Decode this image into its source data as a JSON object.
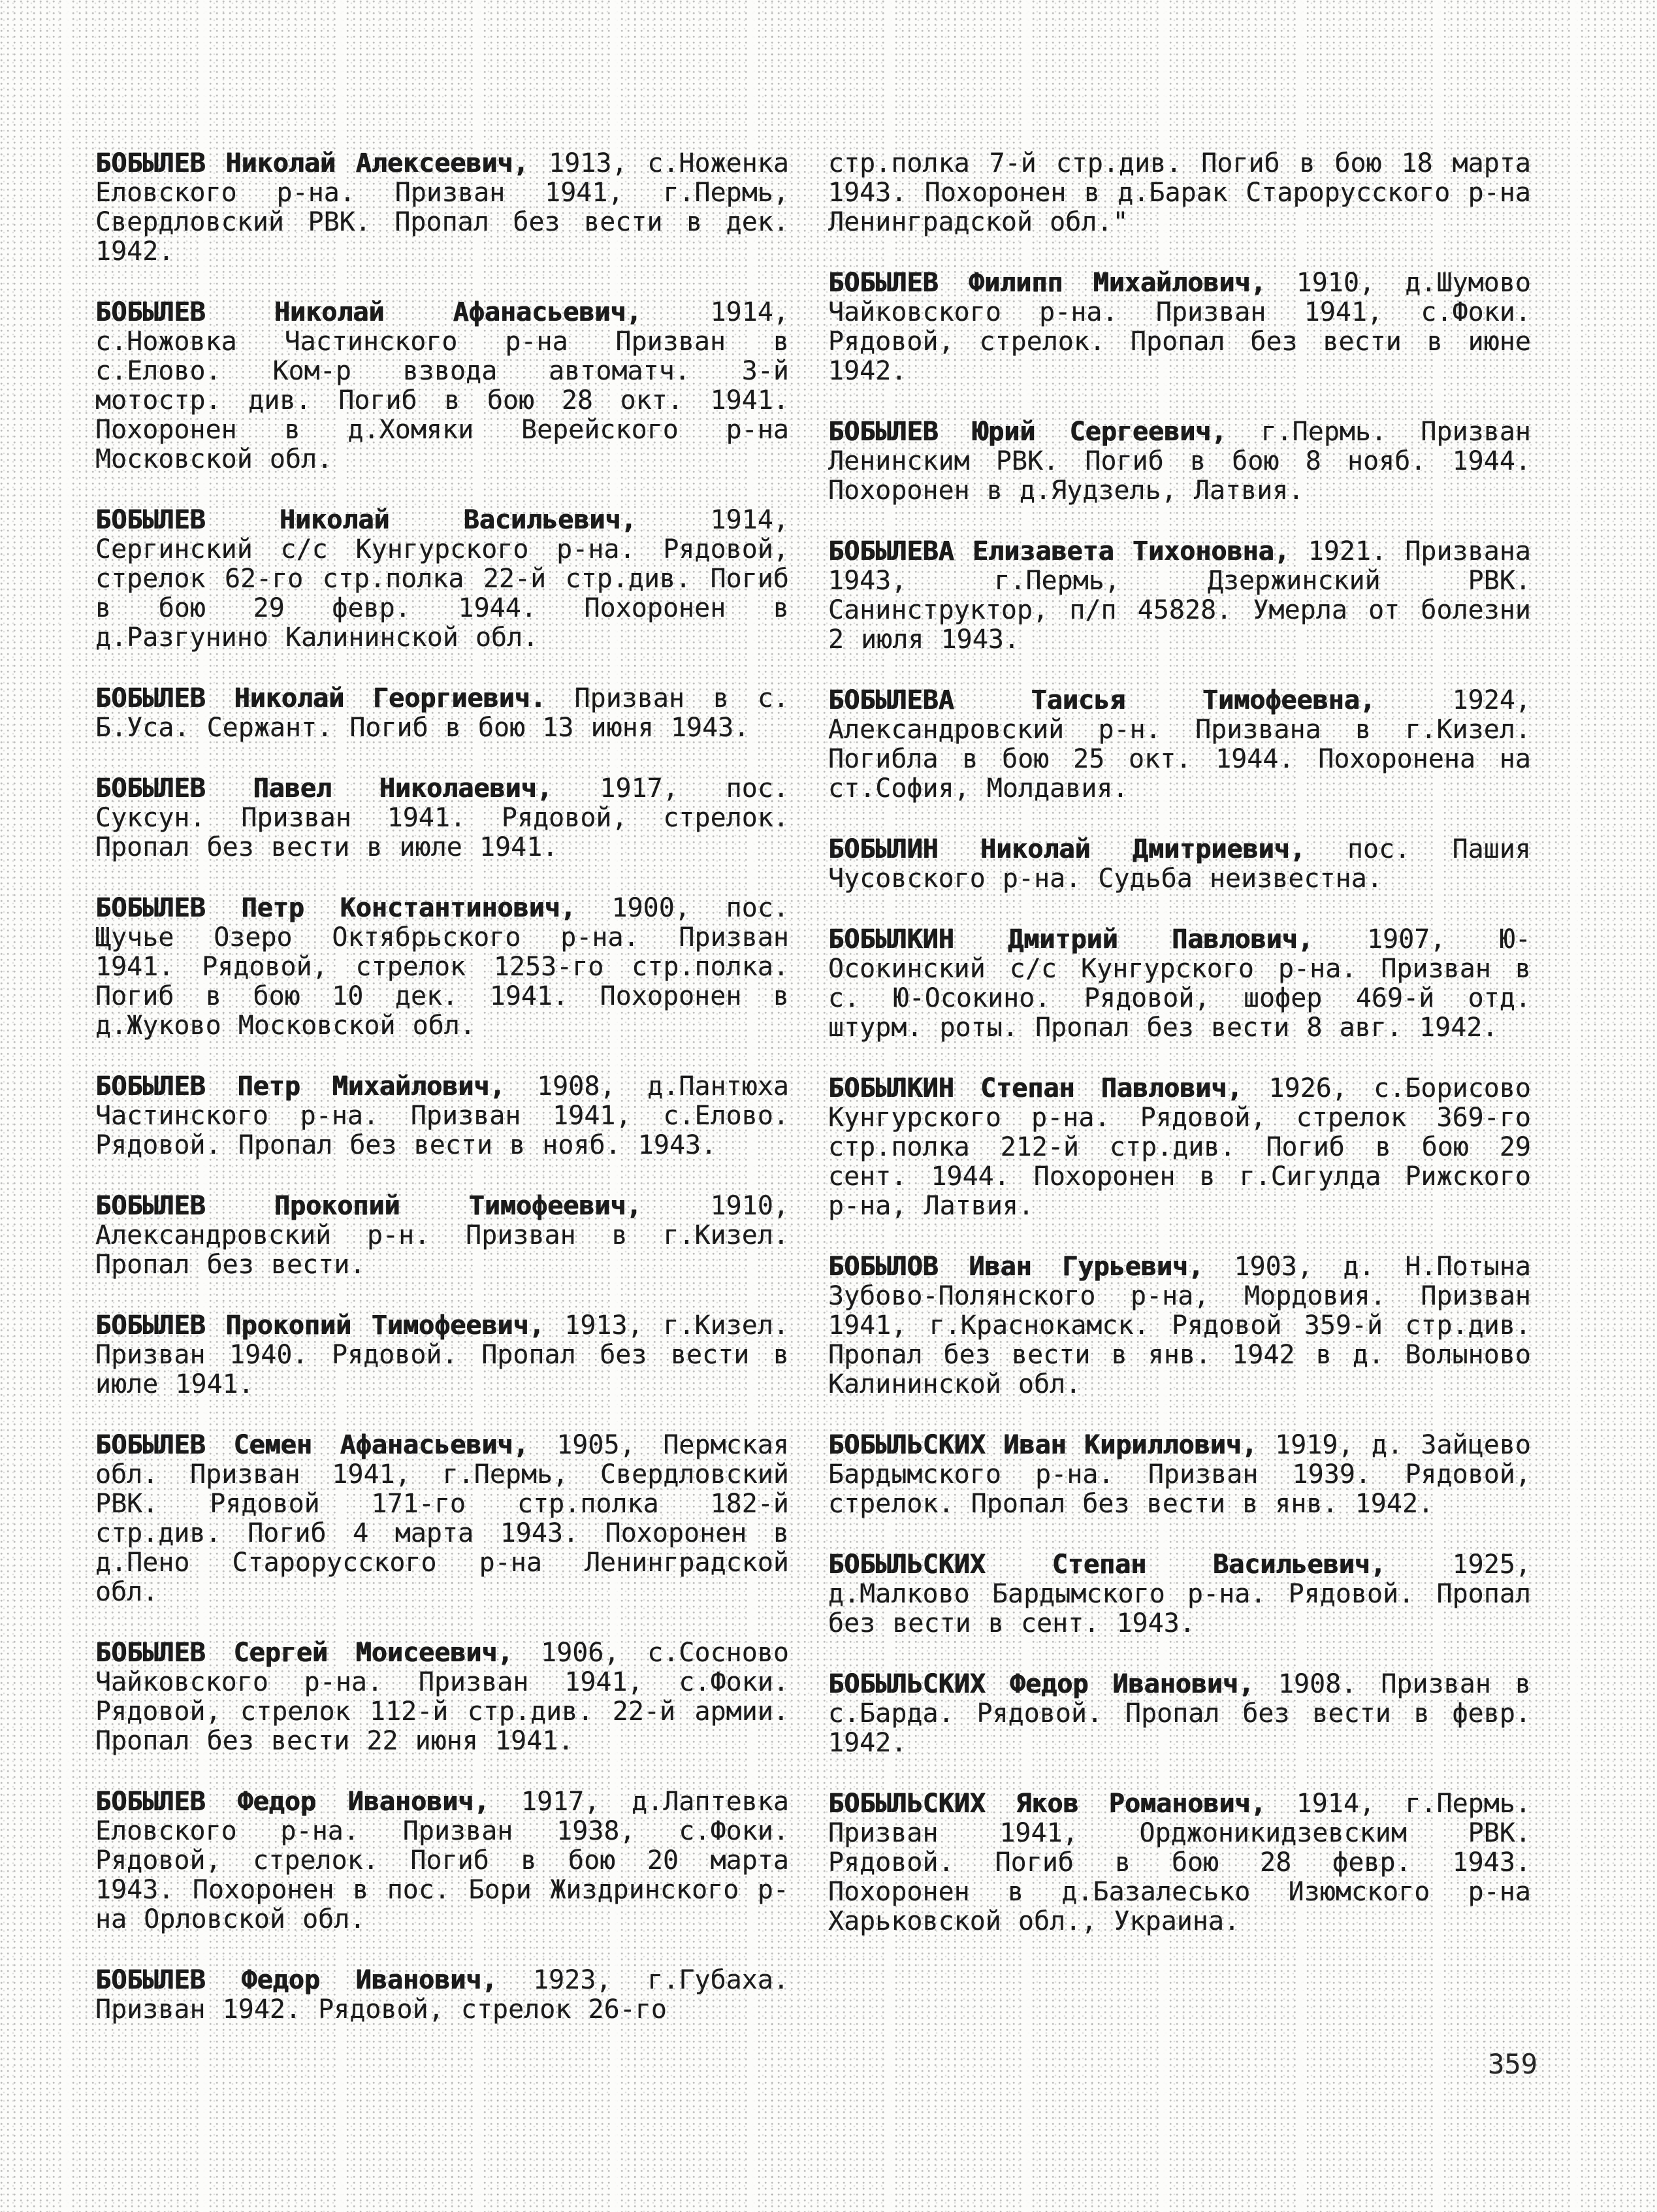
{
  "page": {
    "page_number": "359",
    "paper_color": "#fcfcfa",
    "text_color": "#1b1b1b",
    "layout": "two-column typewriter text, justified"
  },
  "columns": {
    "left": [
      {
        "name": "БОБЫЛЕВ Николай Алексеевич,",
        "text": " 1913, с.Ноженка Еловского р-на. Призван 1941, г.Пермь, Свердловский РВК. Пропал без вести в дек. 1942."
      },
      {
        "name": "БОБЫЛЕВ Николай Афанасьевич,",
        "text": " 1914, с.Ножовка Частинского р-на Призван в с.Елово. Ком-р взвода автоматч. 3-й мотостр. див. Погиб в бою 28 окт. 1941. Похоронен в д.Хомяки Верейского р-на Московской обл."
      },
      {
        "name": "БОБЫЛЕВ Николай Васильевич,",
        "text": " 1914, Сергинский с/с Кунгурского р-на. Рядовой, стрелок 62-го стр.полка 22-й стр.див. Погиб в бою 29 февр. 1944. Похоронен в д.Разгунино Калининской обл."
      },
      {
        "name": "БОБЫЛЕВ Николай Георгиевич.",
        "text": " Призван в с. Б.Уса. Сержант. Погиб в бою 13 июня 1943."
      },
      {
        "name": "БОБЫЛЕВ Павел Николаевич,",
        "text": " 1917, пос. Суксун. Призван 1941. Рядовой, стрелок. Пропал без вести в июле 1941."
      },
      {
        "name": "БОБЫЛЕВ Петр Константинович,",
        "text": " 1900, пос. Щучье Озеро Октябрьского р-на. Призван 1941. Рядовой, стрелок 1253-го стр.полка. Погиб в бою 10 дек. 1941. Похоронен в д.Жуково Московской обл."
      },
      {
        "name": "БОБЫЛЕВ Петр Михайлович,",
        "text": " 1908, д.Пантюха Частинского р-на. Призван 1941, с.Елово. Рядовой. Пропал без вести в нояб. 1943."
      },
      {
        "name": "БОБЫЛЕВ Прокопий Тимофеевич,",
        "text": " 1910, Александровский р-н. Призван в г.Кизел. Пропал без вести."
      },
      {
        "name": "БОБЫЛЕВ Прокопий Тимофеевич,",
        "text": " 1913, г.Кизел. Призван 1940. Рядовой. Пропал без вести в июле 1941."
      },
      {
        "name": "БОБЫЛЕВ Семен Афанасьевич,",
        "text": " 1905, Пермская обл. Призван 1941, г.Пермь, Свердловский РВК. Рядовой 171-го стр.полка 182-й стр.див. Погиб 4 марта 1943. Похоронен в д.Пено Старорусского р-на Ленинградской обл."
      },
      {
        "name": "БОБЫЛЕВ Сергей Моисеевич,",
        "text": " 1906, с.Сосново Чайковского р-на. Призван 1941, с.Фоки. Рядовой, стрелок 112-й стр.див. 22-й армии. Пропал без вести 22 июня 1941."
      },
      {
        "name": "БОБЫЛЕВ Федор Иванович,",
        "text": " 1917, д.Лаптевка Еловского р-на. Призван 1938, с.Фоки. Рядовой, стрелок. Погиб в бою 20 марта 1943. Похоронен в пос. Бори Жиздринского р-на Орловской обл."
      },
      {
        "name": "БОБЫЛЕВ Федор Иванович,",
        "text": " 1923, г.Губаха. Призван 1942. Рядовой, стрелок 26-го"
      }
    ],
    "right": [
      {
        "name": "",
        "text": "стр.полка 7-й стр.див. Погиб в бою 18 марта 1943. Похоронен в д.Барак Старорусского р-на Ленинградской обл.\""
      },
      {
        "name": "БОБЫЛЕВ Филипп Михайлович,",
        "text": " 1910, д.Шумово Чайковского р-на. Призван 1941, с.Фоки. Рядовой, стрелок. Пропал без вести в июне 1942."
      },
      {
        "name": "БОБЫЛЕВ Юрий Сергеевич,",
        "text": " г.Пермь. Призван Ленинским РВК. Погиб в бою 8 нояб. 1944. Похоронен в д.Яудзель, Латвия."
      },
      {
        "name": "БОБЫЛЕВА Елизавета Тихоновна,",
        "text": " 1921. Призвана 1943, г.Пермь, Дзержинский РВК. Санинструктор, п/п 45828. Умерла от болезни 2 июля 1943."
      },
      {
        "name": "БОБЫЛЕВА Таисья Тимофеевна,",
        "text": " 1924, Александровский р-н. Призвана в г.Кизел. Погибла в бою 25 окт. 1944. Похоронена на ст.София, Молдавия."
      },
      {
        "name": "БОБЫЛИН Николай Дмитриевич,",
        "text": " пос. Пашия Чусовского р-на. Судьба неизвестна."
      },
      {
        "name": "БОБЫЛКИН Дмитрий Павлович,",
        "text": " 1907, Ю-Осокинский с/с Кунгурского р-на. Призван в с. Ю-Осокино. Рядовой, шофер 469-й отд. штурм. роты. Пропал без вести 8 авг. 1942."
      },
      {
        "name": "БОБЫЛКИН Степан Павлович,",
        "text": " 1926, с.Борисово Кунгурского р-на. Рядовой, стрелок 369-го стр.полка 212-й стр.див. Погиб в бою 29 сент. 1944. Похоронен в г.Сигулда Рижского р-на, Латвия."
      },
      {
        "name": "БОБЫЛОВ Иван Гурьевич,",
        "text": " 1903, д. Н.Потына Зубово-Полянского р-на, Мордовия. Призван 1941, г.Краснокамск. Рядовой 359-й стр.див. Пропал без вести в янв. 1942 в д. Волыново Калининской обл."
      },
      {
        "name": "БОБЫЛЬСКИХ Иван Кириллович,",
        "text": " 1919, д. Зайцево Бардымского р-на. Призван 1939. Рядовой, стрелок. Пропал без вести в янв. 1942."
      },
      {
        "name": "БОБЫЛЬСКИХ Степан Васильевич,",
        "text": " 1925, д.Малково Бардымского р-на. Рядовой. Пропал без вести в сент. 1943."
      },
      {
        "name": "БОБЫЛЬСКИХ Федор Иванович,",
        "text": " 1908. Призван в с.Барда. Рядовой. Пропал без вести в февр. 1942."
      },
      {
        "name": "БОБЫЛЬСКИХ Яков Романович,",
        "text": " 1914, г.Пермь. Призван 1941, Орджоникидзевским РВК. Рядовой. Погиб в бою 28 февр. 1943. Похоронен в д.Базалесько Изюмского р-на Харьковской обл., Украина."
      }
    ]
  }
}
